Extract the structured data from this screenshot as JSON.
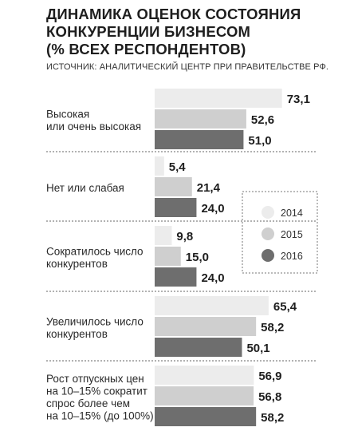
{
  "title_lines": [
    "ДИНАМИКА ОЦЕНОК СОСТОЯНИЯ",
    "КОНКУРЕНЦИИ БИЗНЕСОМ",
    "(% ВСЕХ РЕСПОНДЕНТОВ)"
  ],
  "source": "ИСТОЧНИК: АНАЛИТИЧЕСКИЙ ЦЕНТР ПРИ ПРАВИТЕЛЬСТВЕ РФ.",
  "colors": {
    "2014": "#ececec",
    "2015": "#cfcfcf",
    "2016": "#6e6e6e"
  },
  "chart_data": {
    "type": "bar",
    "orientation": "horizontal",
    "categories": [
      {
        "lines": [
          "Высокая",
          "или очень высокая"
        ]
      },
      {
        "lines": [
          "Нет или слабая"
        ]
      },
      {
        "lines": [
          "Сократилось число",
          "конкурентов"
        ]
      },
      {
        "lines": [
          "Увеличилось число",
          "конкурентов"
        ]
      },
      {
        "lines": [
          "Рост отпускных цен",
          "на 10–15% сократит",
          "спрос более чем",
          "на 10–15% (до 100%)"
        ]
      }
    ],
    "series": [
      {
        "name": "2014",
        "values": [
          73.1,
          5.4,
          9.8,
          65.4,
          56.9
        ],
        "labels": [
          "73,1",
          "5,4",
          "9,8",
          "65,4",
          "56,9"
        ]
      },
      {
        "name": "2015",
        "values": [
          52.6,
          21.4,
          15.0,
          58.2,
          56.8
        ],
        "labels": [
          "52,6",
          "21,4",
          "15,0",
          "58,2",
          "56,8"
        ]
      },
      {
        "name": "2016",
        "values": [
          51.0,
          24.0,
          24.0,
          50.1,
          58.2
        ],
        "labels": [
          "51,0",
          "24,0",
          "24,0",
          "50,1",
          "58,2"
        ]
      }
    ],
    "legend": {
      "position": "right",
      "items": [
        "2014",
        "2015",
        "2016"
      ]
    },
    "grid": false
  }
}
